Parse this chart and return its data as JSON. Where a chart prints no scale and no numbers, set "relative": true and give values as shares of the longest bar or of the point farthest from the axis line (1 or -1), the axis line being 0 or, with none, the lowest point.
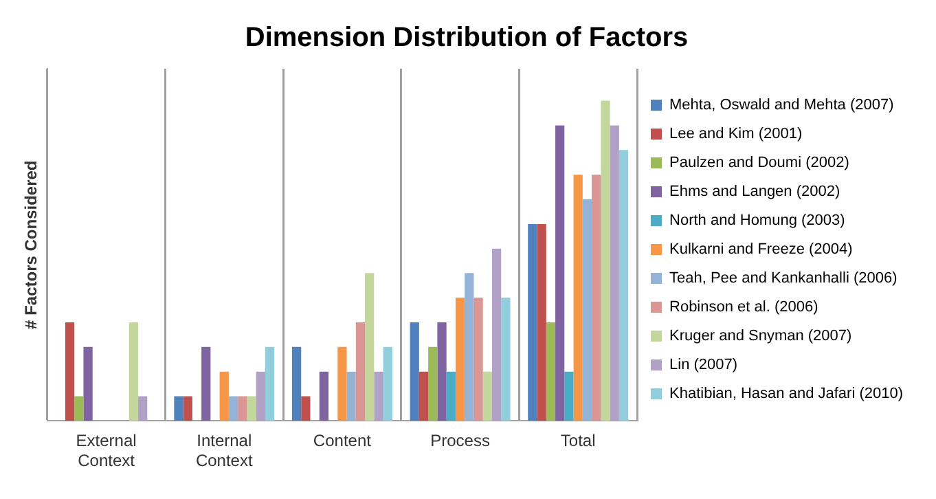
{
  "chart_data": {
    "type": "bar",
    "title": "Dimension Distribution of Factors",
    "ylabel": "# Factors Considered",
    "relative": true,
    "categories": [
      "External Context",
      "Internal Context",
      "Content",
      "Process",
      "Total"
    ],
    "series": [
      {
        "name": "Mehta, Oswald and Mehta (2007)",
        "color": "#4f81bd",
        "values": [
          0,
          0.077,
          0.231,
          0.308,
          0.615
        ]
      },
      {
        "name": "Lee and Kim (2001)",
        "color": "#c0504d",
        "values": [
          0.308,
          0.077,
          0.077,
          0.154,
          0.615
        ]
      },
      {
        "name": "Paulzen and Doumi (2002)",
        "color": "#9bbb59",
        "values": [
          0.077,
          0,
          0,
          0.231,
          0.308
        ]
      },
      {
        "name": "Ehms and Langen (2002)",
        "color": "#8064a2",
        "values": [
          0.231,
          0.231,
          0.154,
          0.308,
          0.923
        ]
      },
      {
        "name": "North and Homung (2003)",
        "color": "#4bacc6",
        "values": [
          0,
          0,
          0,
          0.154,
          0.154
        ]
      },
      {
        "name": "Kulkarni and Freeze (2004)",
        "color": "#f79646",
        "values": [
          0,
          0.154,
          0.231,
          0.385,
          0.769
        ]
      },
      {
        "name": "Teah, Pee and Kankanhalli (2006)",
        "color": "#95b3d7",
        "values": [
          0,
          0.077,
          0.154,
          0.462,
          0.692
        ]
      },
      {
        "name": "Robinson et al. (2006)",
        "color": "#d99694",
        "values": [
          0,
          0.077,
          0.308,
          0.385,
          0.769
        ]
      },
      {
        "name": "Kruger and Snyman (2007)",
        "color": "#c3d69b",
        "values": [
          0.308,
          0.077,
          0.462,
          0.154,
          1
        ]
      },
      {
        "name": "Lin (2007)",
        "color": "#b2a1c7",
        "values": [
          0.077,
          0.154,
          0.154,
          0.538,
          0.923
        ]
      },
      {
        "name": "Khatibian, Hasan and Jafari (2010)",
        "color": "#92cddc",
        "values": [
          0,
          0.231,
          0.231,
          0.385,
          0.846
        ]
      }
    ],
    "grid": "x",
    "legend": "right"
  }
}
